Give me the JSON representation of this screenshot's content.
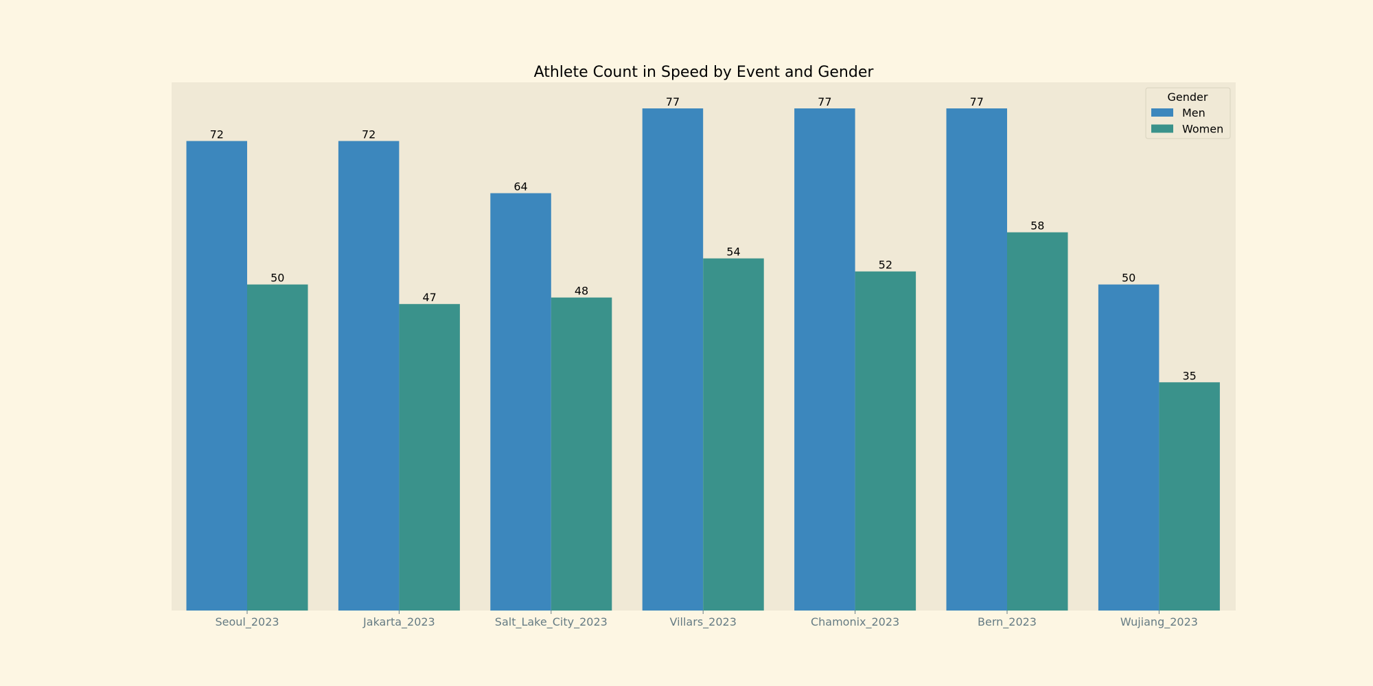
{
  "chart_data": {
    "type": "bar",
    "title": "Athlete Count in Speed by Event and Gender",
    "xlabel": "",
    "ylabel": "",
    "categories": [
      "Seoul_2023",
      "Jakarta_2023",
      "Salt_Lake_City_2023",
      "Villars_2023",
      "Chamonix_2023",
      "Bern_2023",
      "Wujiang_2023"
    ],
    "series": [
      {
        "name": "Men",
        "values": [
          72,
          72,
          64,
          77,
          77,
          77,
          50
        ],
        "color": "#3c87bd"
      },
      {
        "name": "Women",
        "values": [
          50,
          47,
          48,
          54,
          52,
          58,
          35
        ],
        "color": "#3a928b"
      }
    ],
    "ylim": [
      0,
      81
    ],
    "grid": false,
    "legend": {
      "title": "Gender",
      "placement": "top-right"
    },
    "colors": {
      "page_background": "#fdf6e3",
      "plot_background": "#f0e9d6",
      "tick_label": "#657b83"
    }
  }
}
